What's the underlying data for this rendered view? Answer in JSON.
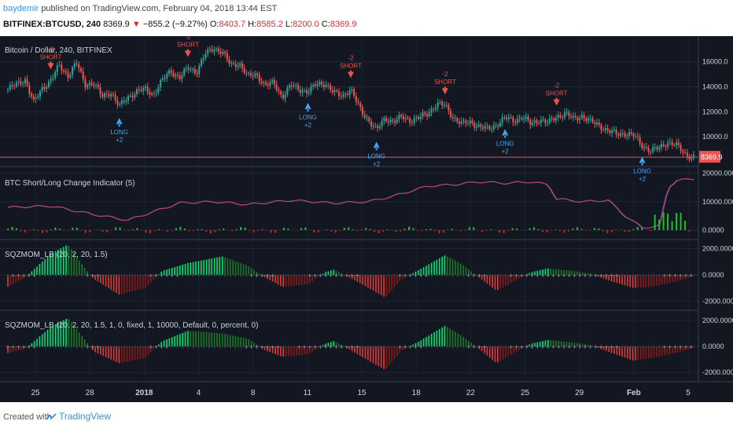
{
  "header": {
    "author": "baydemir",
    "published_text": "published on TradingView.com, February 04, 2018 13:44 EST",
    "symbol": "BITFINEX:BTCUSD, 240",
    "last": "8369.9",
    "change_arrow": "▼",
    "change": "−855.2 (−9.27%)",
    "o_label": "O:",
    "o_value": "8403.7",
    "h_label": "H:",
    "h_value": "8585.2",
    "l_label": "L:",
    "l_value": "8200.0",
    "c_label": "C:",
    "c_value": "8369.9"
  },
  "footer": {
    "created_with": "Created with",
    "brand": "TradingView",
    "brand_icon": "tradingview-logo-icon"
  },
  "colors": {
    "bg": "#131722",
    "up": "#26a69a",
    "down": "#ef5350",
    "long": "#42a5f5",
    "short": "#ef5350",
    "hist_green": "#1fbf2a",
    "hist_red": "#c62828",
    "price_tag": "#ef5350"
  },
  "chart_data": [
    {
      "type": "candlestick",
      "title": "Bitcoin / Dollar, 240, BITFINEX",
      "yticks": [
        10000,
        12000,
        14000,
        16000
      ],
      "ytick_labels": [
        "10000.0",
        "12000.0",
        "14000.0",
        "16000.0"
      ],
      "ylim": [
        8000,
        17800
      ],
      "last_price_label": "8369.9",
      "x_ticks": [
        "25",
        "28",
        "2018",
        "4",
        "8",
        "11",
        "15",
        "18",
        "22",
        "25",
        "29",
        "Feb",
        "5"
      ],
      "close_path": [
        {
          "x": 0,
          "y": 13800
        },
        {
          "x": 2,
          "y": 14600
        },
        {
          "x": 3,
          "y": 12700
        },
        {
          "x": 4,
          "y": 13900
        },
        {
          "x": 5,
          "y": 14500
        },
        {
          "x": 6,
          "y": 15700
        },
        {
          "x": 7,
          "y": 14900
        },
        {
          "x": 8,
          "y": 15900
        },
        {
          "x": 9,
          "y": 14200
        },
        {
          "x": 10,
          "y": 14300
        },
        {
          "x": 11,
          "y": 13200
        },
        {
          "x": 12,
          "y": 13600
        },
        {
          "x": 13,
          "y": 12400
        },
        {
          "x": 14,
          "y": 13200
        },
        {
          "x": 15,
          "y": 13600
        },
        {
          "x": 16,
          "y": 13800
        },
        {
          "x": 17,
          "y": 13400
        },
        {
          "x": 18,
          "y": 14500
        },
        {
          "x": 19,
          "y": 15300
        },
        {
          "x": 20,
          "y": 14700
        },
        {
          "x": 21,
          "y": 15500
        },
        {
          "x": 22,
          "y": 15200
        },
        {
          "x": 23,
          "y": 16600
        },
        {
          "x": 24,
          "y": 17100
        },
        {
          "x": 25,
          "y": 16800
        },
        {
          "x": 26,
          "y": 15700
        },
        {
          "x": 27,
          "y": 15900
        },
        {
          "x": 28,
          "y": 14800
        },
        {
          "x": 29,
          "y": 15000
        },
        {
          "x": 30,
          "y": 14100
        },
        {
          "x": 31,
          "y": 14300
        },
        {
          "x": 32,
          "y": 13200
        },
        {
          "x": 33,
          "y": 14100
        },
        {
          "x": 34,
          "y": 13800
        },
        {
          "x": 35,
          "y": 13600
        },
        {
          "x": 36,
          "y": 14200
        },
        {
          "x": 37,
          "y": 14300
        },
        {
          "x": 38,
          "y": 13500
        },
        {
          "x": 39,
          "y": 13300
        },
        {
          "x": 40,
          "y": 13800
        },
        {
          "x": 41,
          "y": 12300
        },
        {
          "x": 42,
          "y": 11400
        },
        {
          "x": 43,
          "y": 10500
        },
        {
          "x": 44,
          "y": 11500
        },
        {
          "x": 45,
          "y": 11200
        },
        {
          "x": 46,
          "y": 11600
        },
        {
          "x": 47,
          "y": 11300
        },
        {
          "x": 48,
          "y": 11500
        },
        {
          "x": 49,
          "y": 11900
        },
        {
          "x": 50,
          "y": 12600
        },
        {
          "x": 51,
          "y": 12500
        },
        {
          "x": 52,
          "y": 11500
        },
        {
          "x": 53,
          "y": 11000
        },
        {
          "x": 54,
          "y": 11200
        },
        {
          "x": 55,
          "y": 10800
        },
        {
          "x": 56,
          "y": 10600
        },
        {
          "x": 57,
          "y": 11000
        },
        {
          "x": 58,
          "y": 11500
        },
        {
          "x": 59,
          "y": 11300
        },
        {
          "x": 60,
          "y": 11600
        },
        {
          "x": 61,
          "y": 11000
        },
        {
          "x": 62,
          "y": 11400
        },
        {
          "x": 63,
          "y": 11100
        },
        {
          "x": 64,
          "y": 11600
        },
        {
          "x": 65,
          "y": 11900
        },
        {
          "x": 66,
          "y": 11400
        },
        {
          "x": 67,
          "y": 11700
        },
        {
          "x": 68,
          "y": 11200
        },
        {
          "x": 69,
          "y": 10900
        },
        {
          "x": 70,
          "y": 10500
        },
        {
          "x": 71,
          "y": 10200
        },
        {
          "x": 72,
          "y": 10300
        },
        {
          "x": 73,
          "y": 10100
        },
        {
          "x": 74,
          "y": 9300
        },
        {
          "x": 75,
          "y": 8900
        },
        {
          "x": 76,
          "y": 9100
        },
        {
          "x": 77,
          "y": 9600
        },
        {
          "x": 78,
          "y": 9300
        },
        {
          "x": 79,
          "y": 8600
        },
        {
          "x": 80,
          "y": 8400
        }
      ],
      "signals": [
        {
          "x": 5,
          "side": "short",
          "text": "SHORT",
          "value": "-2"
        },
        {
          "x": 13,
          "side": "long",
          "text": "LONG",
          "value": "+2"
        },
        {
          "x": 21,
          "side": "short",
          "text": "SHORT",
          "value": "-2"
        },
        {
          "x": 35,
          "side": "long",
          "text": "LONG",
          "value": "+2"
        },
        {
          "x": 40,
          "side": "short",
          "text": "SHORT",
          "value": "-2"
        },
        {
          "x": 43,
          "side": "long",
          "text": "LONG",
          "value": "+2"
        },
        {
          "x": 51,
          "side": "short",
          "text": "SHORT",
          "value": "-2"
        },
        {
          "x": 58,
          "side": "long",
          "text": "LONG",
          "value": "+2"
        },
        {
          "x": 64,
          "side": "short",
          "text": "SHORT",
          "value": "-2"
        },
        {
          "x": 74,
          "side": "long",
          "text": "LONG",
          "value": "+2"
        }
      ]
    },
    {
      "type": "line",
      "title": "BTC Short/Long Change Indicator (5)",
      "yticks": [
        0,
        10000,
        20000
      ],
      "ytick_labels": [
        "0.0000",
        "10000.0000",
        "20000.0000"
      ],
      "ylim": [
        -2500,
        21000
      ],
      "series": [
        {
          "values": [
            {
              "x": 0,
              "y": 8000
            },
            {
              "x": 5,
              "y": 8500
            },
            {
              "x": 10,
              "y": 5500
            },
            {
              "x": 14,
              "y": 3500
            },
            {
              "x": 17,
              "y": 6500
            },
            {
              "x": 20,
              "y": 9500
            },
            {
              "x": 24,
              "y": 10000
            },
            {
              "x": 28,
              "y": 9000
            },
            {
              "x": 33,
              "y": 10500
            },
            {
              "x": 38,
              "y": 9500
            },
            {
              "x": 42,
              "y": 10000
            },
            {
              "x": 45,
              "y": 12000
            },
            {
              "x": 49,
              "y": 15500
            },
            {
              "x": 52,
              "y": 16000
            },
            {
              "x": 55,
              "y": 17000
            },
            {
              "x": 58,
              "y": 16500
            },
            {
              "x": 61,
              "y": 17000
            },
            {
              "x": 63,
              "y": 16000
            },
            {
              "x": 64,
              "y": 11000
            },
            {
              "x": 67,
              "y": 10000
            },
            {
              "x": 70,
              "y": 10500
            },
            {
              "x": 72,
              "y": 5000
            },
            {
              "x": 74,
              "y": 800
            },
            {
              "x": 76,
              "y": 1500
            },
            {
              "x": 77,
              "y": 15000
            },
            {
              "x": 78,
              "y": 17500
            },
            {
              "x": 80,
              "y": 18000
            }
          ]
        }
      ]
    },
    {
      "type": "bar",
      "title": "SQZMOM_LB (20, 2, 20, 1.5)",
      "yticks": [
        -2000,
        0,
        2000
      ],
      "ytick_labels": [
        "-2000.0000",
        "0.0000",
        "2000.0000"
      ],
      "ylim": [
        -2500,
        2500
      ],
      "momentum": [
        {
          "x": 0,
          "y": -900
        },
        {
          "x": 2,
          "y": -200
        },
        {
          "x": 5,
          "y": 1600
        },
        {
          "x": 7,
          "y": 2300
        },
        {
          "x": 9,
          "y": 500
        },
        {
          "x": 10,
          "y": -300
        },
        {
          "x": 13,
          "y": -1500
        },
        {
          "x": 16,
          "y": -1000
        },
        {
          "x": 18,
          "y": 300
        },
        {
          "x": 21,
          "y": 900
        },
        {
          "x": 25,
          "y": 1400
        },
        {
          "x": 28,
          "y": 700
        },
        {
          "x": 30,
          "y": -200
        },
        {
          "x": 32,
          "y": -900
        },
        {
          "x": 35,
          "y": -700
        },
        {
          "x": 37,
          "y": 200
        },
        {
          "x": 38,
          "y": 400
        },
        {
          "x": 39,
          "y": 100
        },
        {
          "x": 41,
          "y": -600
        },
        {
          "x": 44,
          "y": -1700
        },
        {
          "x": 46,
          "y": -300
        },
        {
          "x": 48,
          "y": 400
        },
        {
          "x": 51,
          "y": 1500
        },
        {
          "x": 53,
          "y": 800
        },
        {
          "x": 55,
          "y": -200
        },
        {
          "x": 57,
          "y": -1200
        },
        {
          "x": 59,
          "y": -500
        },
        {
          "x": 61,
          "y": 200
        },
        {
          "x": 63,
          "y": 500
        },
        {
          "x": 66,
          "y": 300
        },
        {
          "x": 68,
          "y": 100
        },
        {
          "x": 70,
          "y": -400
        },
        {
          "x": 73,
          "y": -1000
        },
        {
          "x": 75,
          "y": -900
        },
        {
          "x": 78,
          "y": -500
        },
        {
          "x": 80,
          "y": -100
        }
      ]
    },
    {
      "type": "bar",
      "title": "SQZMOM_LB (20, 2, 20, 1.5, 1, 0, fixed, 1, 10000, Default, 0, percent, 0)",
      "yticks": [
        -2000,
        0,
        2000
      ],
      "ytick_labels": [
        "-2000.0000",
        "0.0000",
        "2000.0000"
      ],
      "ylim": [
        -2600,
        2600
      ],
      "momentum": [
        {
          "x": 0,
          "y": -500
        },
        {
          "x": 2,
          "y": -200
        },
        {
          "x": 5,
          "y": 1500
        },
        {
          "x": 7,
          "y": 2200
        },
        {
          "x": 9,
          "y": 500
        },
        {
          "x": 10,
          "y": -400
        },
        {
          "x": 13,
          "y": -1300
        },
        {
          "x": 16,
          "y": -900
        },
        {
          "x": 18,
          "y": 400
        },
        {
          "x": 21,
          "y": 1200
        },
        {
          "x": 25,
          "y": 1000
        },
        {
          "x": 28,
          "y": 600
        },
        {
          "x": 30,
          "y": -300
        },
        {
          "x": 32,
          "y": -800
        },
        {
          "x": 35,
          "y": -600
        },
        {
          "x": 37,
          "y": 200
        },
        {
          "x": 38,
          "y": 400
        },
        {
          "x": 39,
          "y": 100
        },
        {
          "x": 41,
          "y": -700
        },
        {
          "x": 44,
          "y": -1800
        },
        {
          "x": 46,
          "y": -300
        },
        {
          "x": 48,
          "y": 400
        },
        {
          "x": 51,
          "y": 1600
        },
        {
          "x": 53,
          "y": 800
        },
        {
          "x": 55,
          "y": -200
        },
        {
          "x": 57,
          "y": -1300
        },
        {
          "x": 59,
          "y": -500
        },
        {
          "x": 61,
          "y": 200
        },
        {
          "x": 63,
          "y": 500
        },
        {
          "x": 66,
          "y": 300
        },
        {
          "x": 68,
          "y": 100
        },
        {
          "x": 70,
          "y": -400
        },
        {
          "x": 73,
          "y": -1100
        },
        {
          "x": 75,
          "y": -900
        },
        {
          "x": 78,
          "y": -500
        },
        {
          "x": 80,
          "y": -100
        }
      ]
    }
  ]
}
